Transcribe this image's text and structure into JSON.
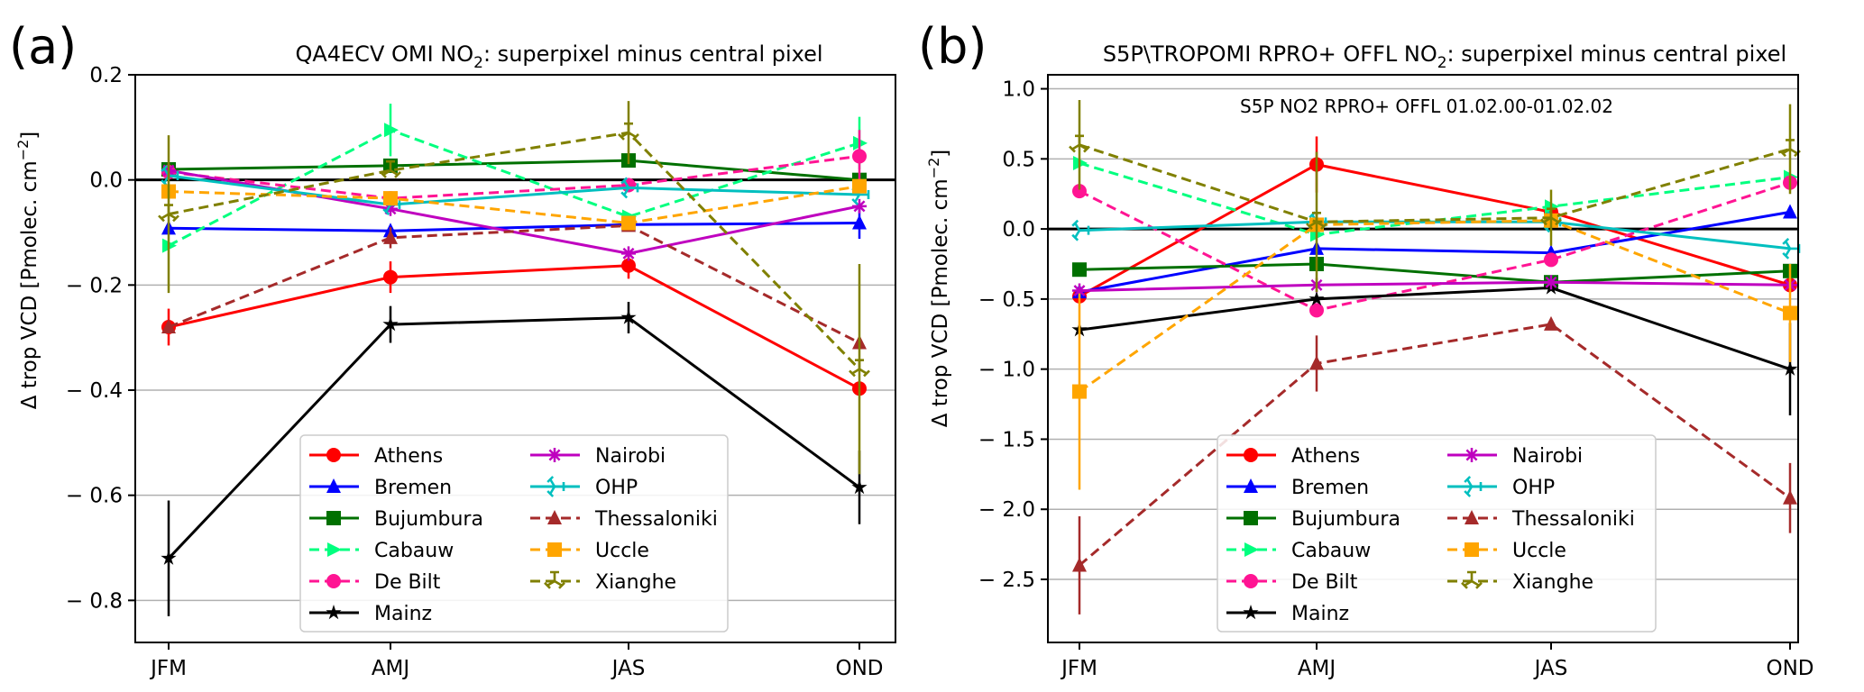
{
  "chart_data": [
    {
      "panel_label": "(a)",
      "type": "line",
      "title_main": "QA4ECV OMI NO",
      "title_sub": "2",
      "title_rest": ": superpixel minus central pixel",
      "ylabel_main": "Δ trop VCD [Pmolec. cm",
      "ylabel_sup": "−2",
      "ylabel_end": "]",
      "annotation": "",
      "categories": [
        "JFM",
        "AMJ",
        "JAS",
        "OND"
      ],
      "ylim": [
        -0.88,
        0.2
      ],
      "yticks": [
        0.2,
        0.0,
        -0.2,
        -0.4,
        -0.6,
        -0.8
      ],
      "ytick_labels": [
        "0.2",
        "0.0",
        "− 0.2",
        "− 0.4",
        "− 0.6",
        "− 0.8"
      ],
      "grid": "horizontal",
      "legend": "lower-center",
      "series": [
        {
          "name": "Athens",
          "values": [
            -0.28,
            -0.185,
            -0.163,
            -0.397
          ],
          "err": [
            0.035,
            0.03,
            0.025,
            0.0
          ],
          "color": "#ff0000",
          "dash": "solid",
          "marker": "circle"
        },
        {
          "name": "Bremen",
          "values": [
            -0.092,
            -0.097,
            -0.085,
            -0.082
          ],
          "err": [
            0.0,
            0.0,
            0.0,
            0.03
          ],
          "color": "#0000ff",
          "dash": "solid",
          "marker": "triangle-up"
        },
        {
          "name": "Bujumbura",
          "values": [
            0.02,
            0.027,
            0.037,
            0.0
          ],
          "err": [
            0.0,
            0.0,
            0.0,
            0.0
          ],
          "color": "#007000",
          "dash": "solid",
          "marker": "square"
        },
        {
          "name": "Cabauw",
          "values": [
            -0.125,
            0.095,
            -0.07,
            0.07
          ],
          "err": [
            0.0,
            0.05,
            0.0,
            0.05
          ],
          "color": "#00ff7f",
          "dash": "dashed",
          "marker": "triangle-right"
        },
        {
          "name": "De Bilt",
          "values": [
            0.015,
            -0.035,
            -0.01,
            0.045
          ],
          "err": [
            0.0,
            0.0,
            0.0,
            0.05
          ],
          "color": "#ff1493",
          "dash": "dashed",
          "marker": "circle"
        },
        {
          "name": "Mainz",
          "values": [
            -0.72,
            -0.275,
            -0.262,
            -0.585
          ],
          "err": [
            0.11,
            0.035,
            0.03,
            0.07
          ],
          "color": "#000000",
          "dash": "solid",
          "marker": "star"
        },
        {
          "name": "Nairobi",
          "values": [
            0.018,
            -0.055,
            -0.14,
            -0.05
          ],
          "err": [
            0.0,
            0.0,
            0.0,
            0.0
          ],
          "color": "#bf00bf",
          "dash": "solid",
          "marker": "asterisk"
        },
        {
          "name": "OHP",
          "values": [
            0.008,
            -0.047,
            -0.015,
            -0.028
          ],
          "err": [
            0.0,
            0.0,
            0.0,
            0.0
          ],
          "color": "#00bfbf",
          "dash": "solid",
          "marker": "tri-right"
        },
        {
          "name": "Thessaloniki",
          "values": [
            -0.28,
            -0.11,
            -0.087,
            -0.31
          ],
          "err": [
            0.0,
            0.02,
            0.0,
            0.0
          ],
          "color": "#a52a2a",
          "dash": "dashed",
          "marker": "triangle-up"
        },
        {
          "name": "Uccle",
          "values": [
            -0.022,
            -0.035,
            -0.082,
            -0.012
          ],
          "err": [
            0.0,
            0.0,
            0.0,
            0.0
          ],
          "color": "#ffa500",
          "dash": "dashed",
          "marker": "square"
        },
        {
          "name": "Xianghe",
          "values": [
            -0.065,
            0.018,
            0.09,
            -0.36
          ],
          "err": [
            0.15,
            0.0,
            0.06,
            0.2
          ],
          "color": "#808000",
          "dash": "dashed",
          "marker": "tri-up"
        }
      ]
    },
    {
      "panel_label": "(b)",
      "type": "line",
      "title_main": "S5P\\TROPOMI RPRO+ OFFL NO",
      "title_sub": "2",
      "title_rest": ": superpixel minus central pixel",
      "ylabel_main": "Δ trop VCD [Pmolec. cm",
      "ylabel_sup": "−2",
      "ylabel_end": "]",
      "annotation": "S5P  NO2 RPRO+ OFFL 01.02.00-01.02.02",
      "categories": [
        "JFM",
        "AMJ",
        "JAS",
        "OND"
      ],
      "ylim": [
        -2.95,
        1.1
      ],
      "yticks": [
        1.0,
        0.5,
        0.0,
        -0.5,
        -1.0,
        -1.5,
        -2.0,
        -2.5
      ],
      "ytick_labels": [
        "1.0",
        "0.5",
        "0.0",
        "− 0.5",
        "− 1.0",
        "− 1.5",
        "− 2.0",
        "− 2.5"
      ],
      "grid": "horizontal",
      "legend": "lower-center",
      "series": [
        {
          "name": "Athens",
          "values": [
            -0.48,
            0.46,
            0.12,
            -0.4
          ],
          "err": [
            0.0,
            0.2,
            0.0,
            0.0
          ],
          "color": "#ff0000",
          "dash": "solid",
          "marker": "circle"
        },
        {
          "name": "Bremen",
          "values": [
            -0.45,
            -0.14,
            -0.17,
            0.12
          ],
          "err": [
            0.0,
            0.0,
            0.0,
            0.0
          ],
          "color": "#0000ff",
          "dash": "solid",
          "marker": "triangle-up"
        },
        {
          "name": "Bujumbura",
          "values": [
            -0.29,
            -0.25,
            -0.38,
            -0.3
          ],
          "err": [
            0.0,
            0.0,
            0.0,
            0.0
          ],
          "color": "#007000",
          "dash": "solid",
          "marker": "square"
        },
        {
          "name": "Cabauw",
          "values": [
            0.47,
            -0.04,
            0.16,
            0.37
          ],
          "err": [
            0.0,
            0.0,
            0.0,
            0.0
          ],
          "color": "#00ff7f",
          "dash": "dashed",
          "marker": "triangle-right"
        },
        {
          "name": "De Bilt",
          "values": [
            0.27,
            -0.58,
            -0.22,
            0.33
          ],
          "err": [
            0.0,
            0.0,
            0.0,
            0.0
          ],
          "color": "#ff1493",
          "dash": "dashed",
          "marker": "circle"
        },
        {
          "name": "Mainz",
          "values": [
            -0.72,
            -0.5,
            -0.42,
            -1.0
          ],
          "err": [
            0.0,
            0.0,
            0.0,
            0.33
          ],
          "color": "#000000",
          "dash": "solid",
          "marker": "star"
        },
        {
          "name": "Nairobi",
          "values": [
            -0.44,
            -0.4,
            -0.38,
            -0.4
          ],
          "err": [
            0.0,
            0.0,
            0.0,
            0.0
          ],
          "color": "#bf00bf",
          "dash": "solid",
          "marker": "asterisk"
        },
        {
          "name": "OHP",
          "values": [
            -0.01,
            0.05,
            0.05,
            -0.14
          ],
          "err": [
            0.0,
            0.0,
            0.0,
            0.0
          ],
          "color": "#00bfbf",
          "dash": "solid",
          "marker": "tri-right"
        },
        {
          "name": "Thessaloniki",
          "values": [
            -2.4,
            -0.96,
            -0.68,
            -1.92
          ],
          "err": [
            0.35,
            0.2,
            0.0,
            0.25
          ],
          "color": "#a52a2a",
          "dash": "dashed",
          "marker": "triangle-up"
        },
        {
          "name": "Uccle",
          "values": [
            -1.16,
            0.03,
            0.06,
            -0.6
          ],
          "err": [
            0.7,
            0.0,
            0.0,
            0.35
          ],
          "color": "#ffa500",
          "dash": "dashed",
          "marker": "square"
        },
        {
          "name": "Xianghe",
          "values": [
            0.6,
            0.05,
            0.08,
            0.57
          ],
          "err": [
            0.32,
            0.5,
            0.2,
            0.32
          ],
          "color": "#808000",
          "dash": "dashed",
          "marker": "tri-up"
        }
      ]
    }
  ]
}
